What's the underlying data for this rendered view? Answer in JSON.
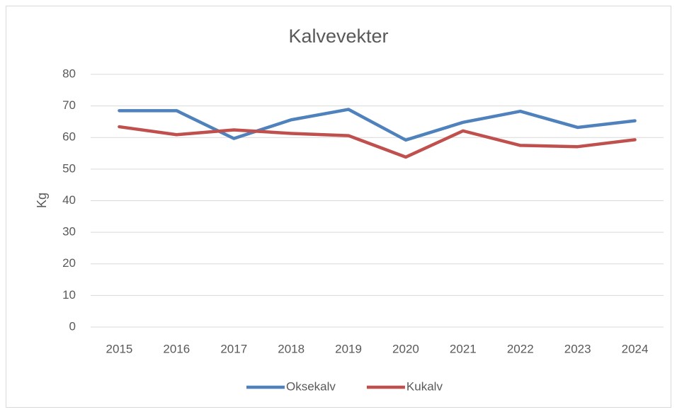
{
  "chart_data": {
    "type": "line",
    "title": "Kalvevekter",
    "y_label": "Kg",
    "categories": [
      "2015",
      "2016",
      "2017",
      "2018",
      "2019",
      "2020",
      "2021",
      "2022",
      "2023",
      "2024"
    ],
    "series": [
      {
        "name": "Oksekalv",
        "color": "#4f81bd",
        "values": [
          68.5,
          68.5,
          59.7,
          65.6,
          68.9,
          59.2,
          64.8,
          68.3,
          63.2,
          65.3
        ]
      },
      {
        "name": "Kukalv",
        "color": "#c0504d",
        "values": [
          63.4,
          60.9,
          62.4,
          61.3,
          60.6,
          53.8,
          62.1,
          57.5,
          57.1,
          59.3
        ]
      }
    ],
    "ylim": [
      0,
      80
    ],
    "yticks": [
      0,
      10,
      20,
      30,
      40,
      50,
      60,
      70,
      80
    ],
    "grid": true,
    "legend": "bottom"
  }
}
